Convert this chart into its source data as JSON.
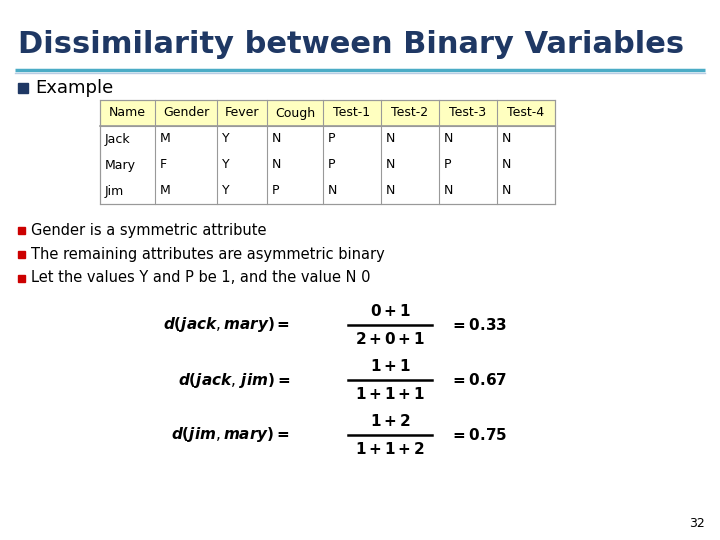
{
  "title": "Dissimilarity between Binary Variables",
  "title_color": "#1F3864",
  "title_fontsize": 22,
  "background_color": "#FFFFFF",
  "header_bg": "#FFFFC0",
  "table_header": [
    "Name",
    "Gender",
    "Fever",
    "Cough",
    "Test-1",
    "Test-2",
    "Test-3",
    "Test-4"
  ],
  "table_rows": [
    [
      "Jack",
      "M",
      "Y",
      "N",
      "P",
      "N",
      "N",
      "N"
    ],
    [
      "Mary",
      "F",
      "Y",
      "N",
      "P",
      "N",
      "P",
      "N"
    ],
    [
      "Jim",
      "M",
      "Y",
      "P",
      "N",
      "N",
      "N",
      "N"
    ]
  ],
  "bullet_color_main": "#1F3864",
  "bullet_color_sub": "#CC0000",
  "example_text": "Example",
  "bullets": [
    "Gender is a symmetric attribute",
    "The remaining attributes are asymmetric binary",
    "Let the values Y and P be 1, and the value N 0"
  ],
  "formulas": [
    {
      "lhs": "$d(jack, mary) =$",
      "num": "$\\mathbf{0+1}$",
      "den": "$\\mathbf{2+0+1}$",
      "result": "$= 0.33$"
    },
    {
      "lhs": "$d(jack, jim) =$",
      "num": "$\\mathbf{1+1}$",
      "den": "$\\mathbf{1+1+1}$",
      "result": "$= 0.67$"
    },
    {
      "lhs": "$d(jim, mary) =$",
      "num": "$\\mathbf{1+2}$",
      "den": "$\\mathbf{1+1+2}$",
      "result": "$= 0.75$"
    }
  ],
  "page_number": "32",
  "separator_color1": "#4BACC6",
  "separator_color2": "#B8CCE4"
}
